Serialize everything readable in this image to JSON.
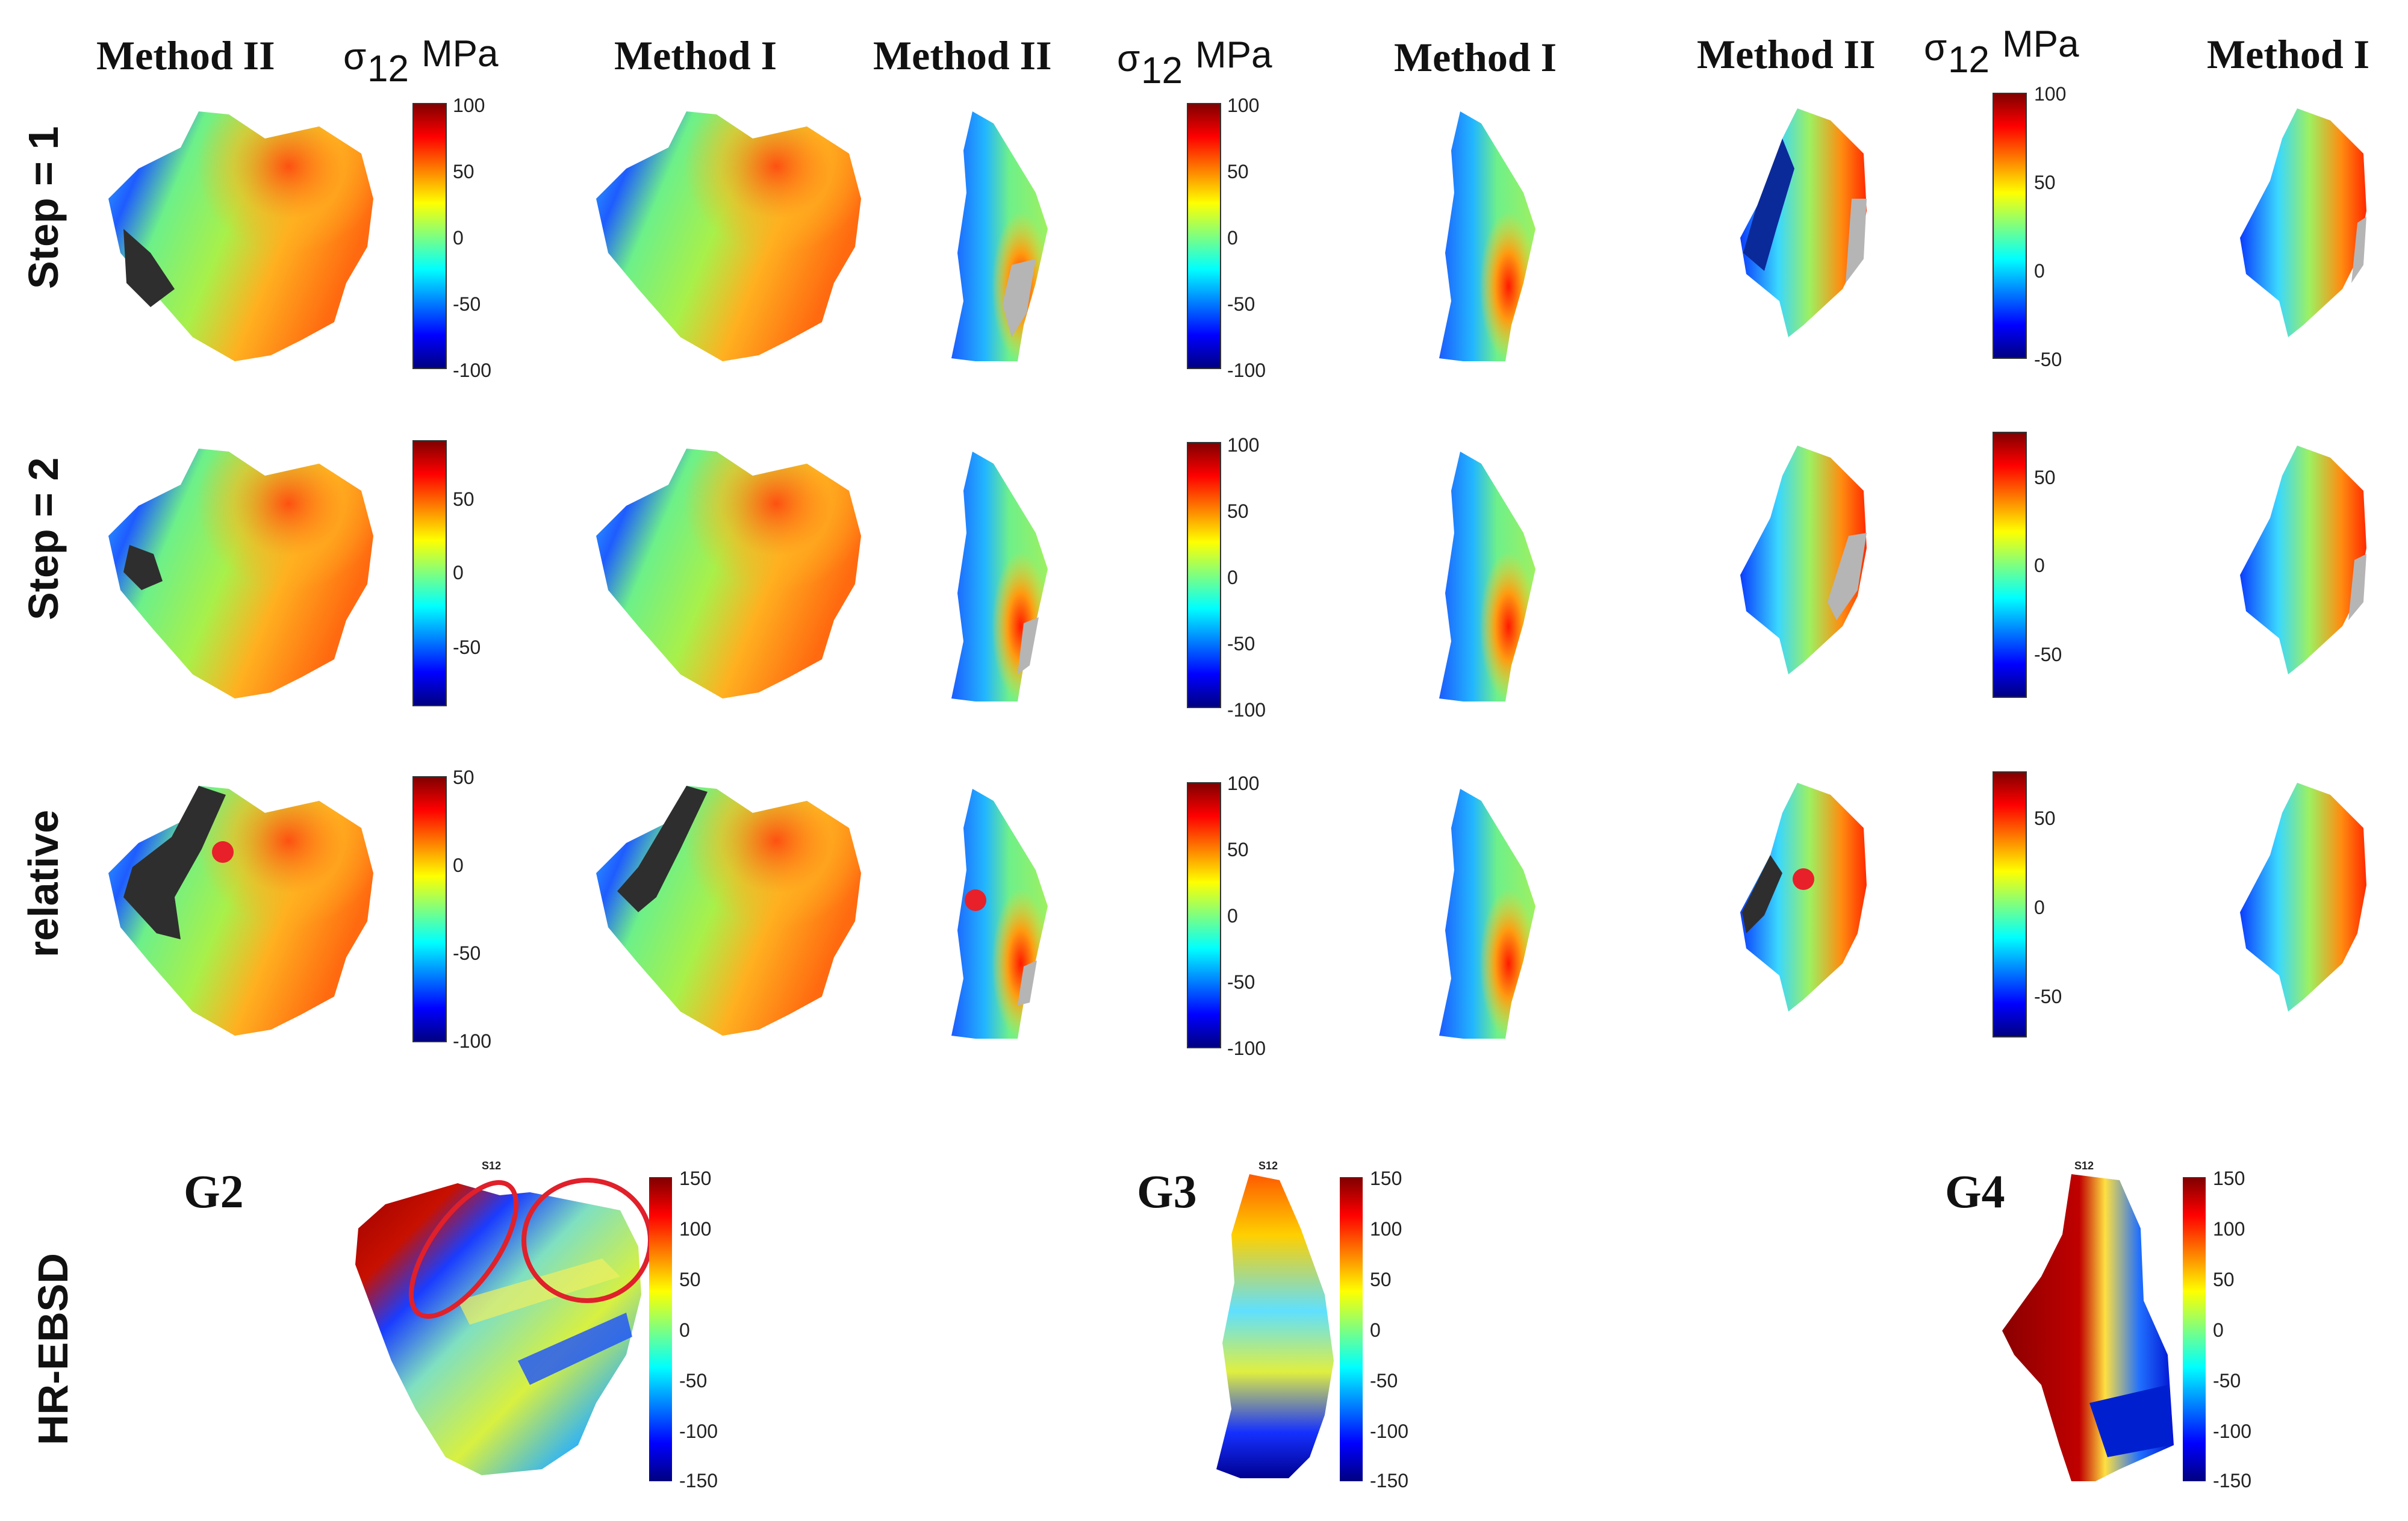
{
  "colors": {
    "jet": [
      "#00007f",
      "#0000ff",
      "#007fff",
      "#00ffff",
      "#7fff7f",
      "#ffff00",
      "#ff7f00",
      "#ff0000",
      "#7f0000"
    ],
    "marker": "#e8202a",
    "ellipse": "#e0202a",
    "gap_grey": "#b5b5b5",
    "dark_region": "#2e2e2e"
  },
  "headers": {
    "method2": "Method II",
    "method1": "Method I",
    "sigma_symbol": "σ",
    "sigma_sub": "12",
    "sigma_unit": "MPa"
  },
  "row_labels": [
    "Step = 1",
    "Step = 2",
    "relative",
    "HR-EBSD"
  ],
  "colorbars": [
    [
      "100",
      "50",
      "0",
      "-50",
      "-100"
    ],
    [
      "100",
      "50",
      "0",
      "-50",
      "-100"
    ],
    [
      "100",
      "50",
      "0",
      "-50"
    ],
    [
      "50",
      "0",
      "-50"
    ],
    [
      "100",
      "50",
      "0",
      "-50",
      "-100"
    ],
    [
      "50",
      "0",
      "-50"
    ],
    [
      "50",
      "0",
      "-50",
      "-100"
    ],
    [
      "100",
      "50",
      "0",
      "-50",
      "-100"
    ],
    [
      "50",
      "0",
      "-50"
    ]
  ],
  "hrebsd": {
    "panel_title": "S12",
    "grains": [
      "G2",
      "G3",
      "G4"
    ],
    "ticks": [
      "150",
      "100",
      "50",
      "0",
      "-50",
      "-100",
      "-150"
    ]
  }
}
